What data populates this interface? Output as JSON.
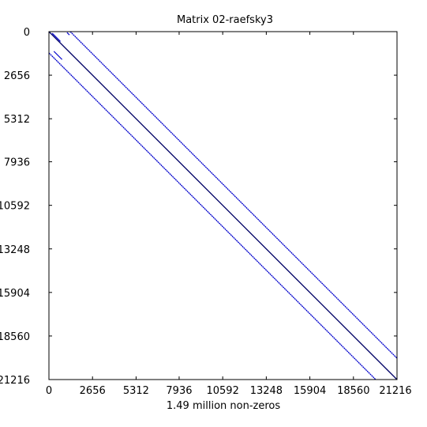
{
  "chart_data": {
    "type": "scatter",
    "title": "Matrix 02-raefsky3",
    "xlabel": "1.49 million non-zeros",
    "ylabel": "",
    "xlim": [
      0,
      21216
    ],
    "ylim": [
      0,
      21216
    ],
    "y_inverted": true,
    "grid": false,
    "x_ticks": [
      "0",
      "2656",
      "5312",
      "7936",
      "10592",
      "13248",
      "15904",
      "18560",
      "21216"
    ],
    "y_ticks": [
      "0",
      "2656",
      "5312",
      "7936",
      "10592",
      "13248",
      "15904",
      "18560",
      "21216"
    ],
    "tick_values": [
      0,
      2656,
      5312,
      7936,
      10592,
      13248,
      15904,
      18560,
      21216
    ],
    "colors": {
      "nonzero": "#0000cc",
      "main_diagonal": "#000066",
      "frame": "#000000"
    },
    "bands": [
      {
        "offset": 0,
        "color_key": "main_diagonal"
      },
      {
        "offset": 1300,
        "color_key": "nonzero"
      },
      {
        "offset": -1300,
        "color_key": "nonzero"
      }
    ],
    "corner_fragments": [
      {
        "start": [
          200,
          100
        ],
        "end": [
          700,
          600
        ],
        "color_key": "nonzero"
      },
      {
        "start": [
          300,
          1200
        ],
        "end": [
          800,
          1700
        ],
        "color_key": "nonzero"
      },
      {
        "start": [
          1100,
          50
        ],
        "end": [
          1250,
          200
        ],
        "color_key": "nonzero"
      }
    ]
  }
}
